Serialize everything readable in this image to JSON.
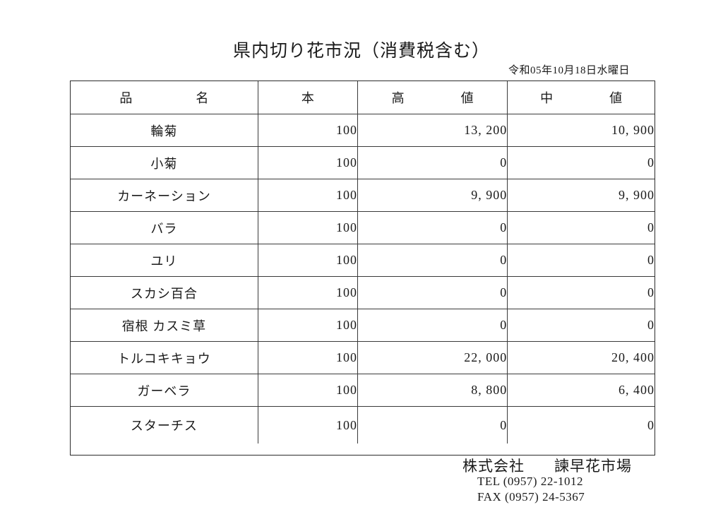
{
  "page": {
    "title": "県内切り花市況（消費税含む）",
    "date": "令和05年10月18日水曜日"
  },
  "colors": {
    "ink": "#1a1a1a",
    "border": "#3a3a3a",
    "background": "#ffffff"
  },
  "table": {
    "headers": {
      "name": [
        "品",
        "名"
      ],
      "qty": [
        "本"
      ],
      "high": [
        "高",
        "値"
      ],
      "mid": [
        "中",
        "値"
      ]
    },
    "rows": [
      {
        "name": "輪菊",
        "qty": "100",
        "high": "13, 200",
        "mid": "10, 900"
      },
      {
        "name": "小菊",
        "qty": "100",
        "high": "0",
        "mid": "0"
      },
      {
        "name": "カーネーション",
        "qty": "100",
        "high": "9, 900",
        "mid": "9, 900"
      },
      {
        "name": "バラ",
        "qty": "100",
        "high": "0",
        "mid": "0"
      },
      {
        "name": "ユリ",
        "qty": "100",
        "high": "0",
        "mid": "0"
      },
      {
        "name": "スカシ百合",
        "qty": "100",
        "high": "0",
        "mid": "0"
      },
      {
        "name": "宿根 カスミ草",
        "qty": "100",
        "high": "0",
        "mid": "0"
      },
      {
        "name": "トルコキキョウ",
        "qty": "100",
        "high": "22, 000",
        "mid": "20, 400"
      },
      {
        "name": "ガーベラ",
        "qty": "100",
        "high": "8, 800",
        "mid": "6, 400"
      },
      {
        "name": "スターチス",
        "qty": "100",
        "high": "0",
        "mid": "0"
      }
    ]
  },
  "footer": {
    "company": "株式会社",
    "market": "諫早花市場",
    "tel": "TEL (0957) 22-1012",
    "fax": "FAX (0957) 24-5367"
  }
}
